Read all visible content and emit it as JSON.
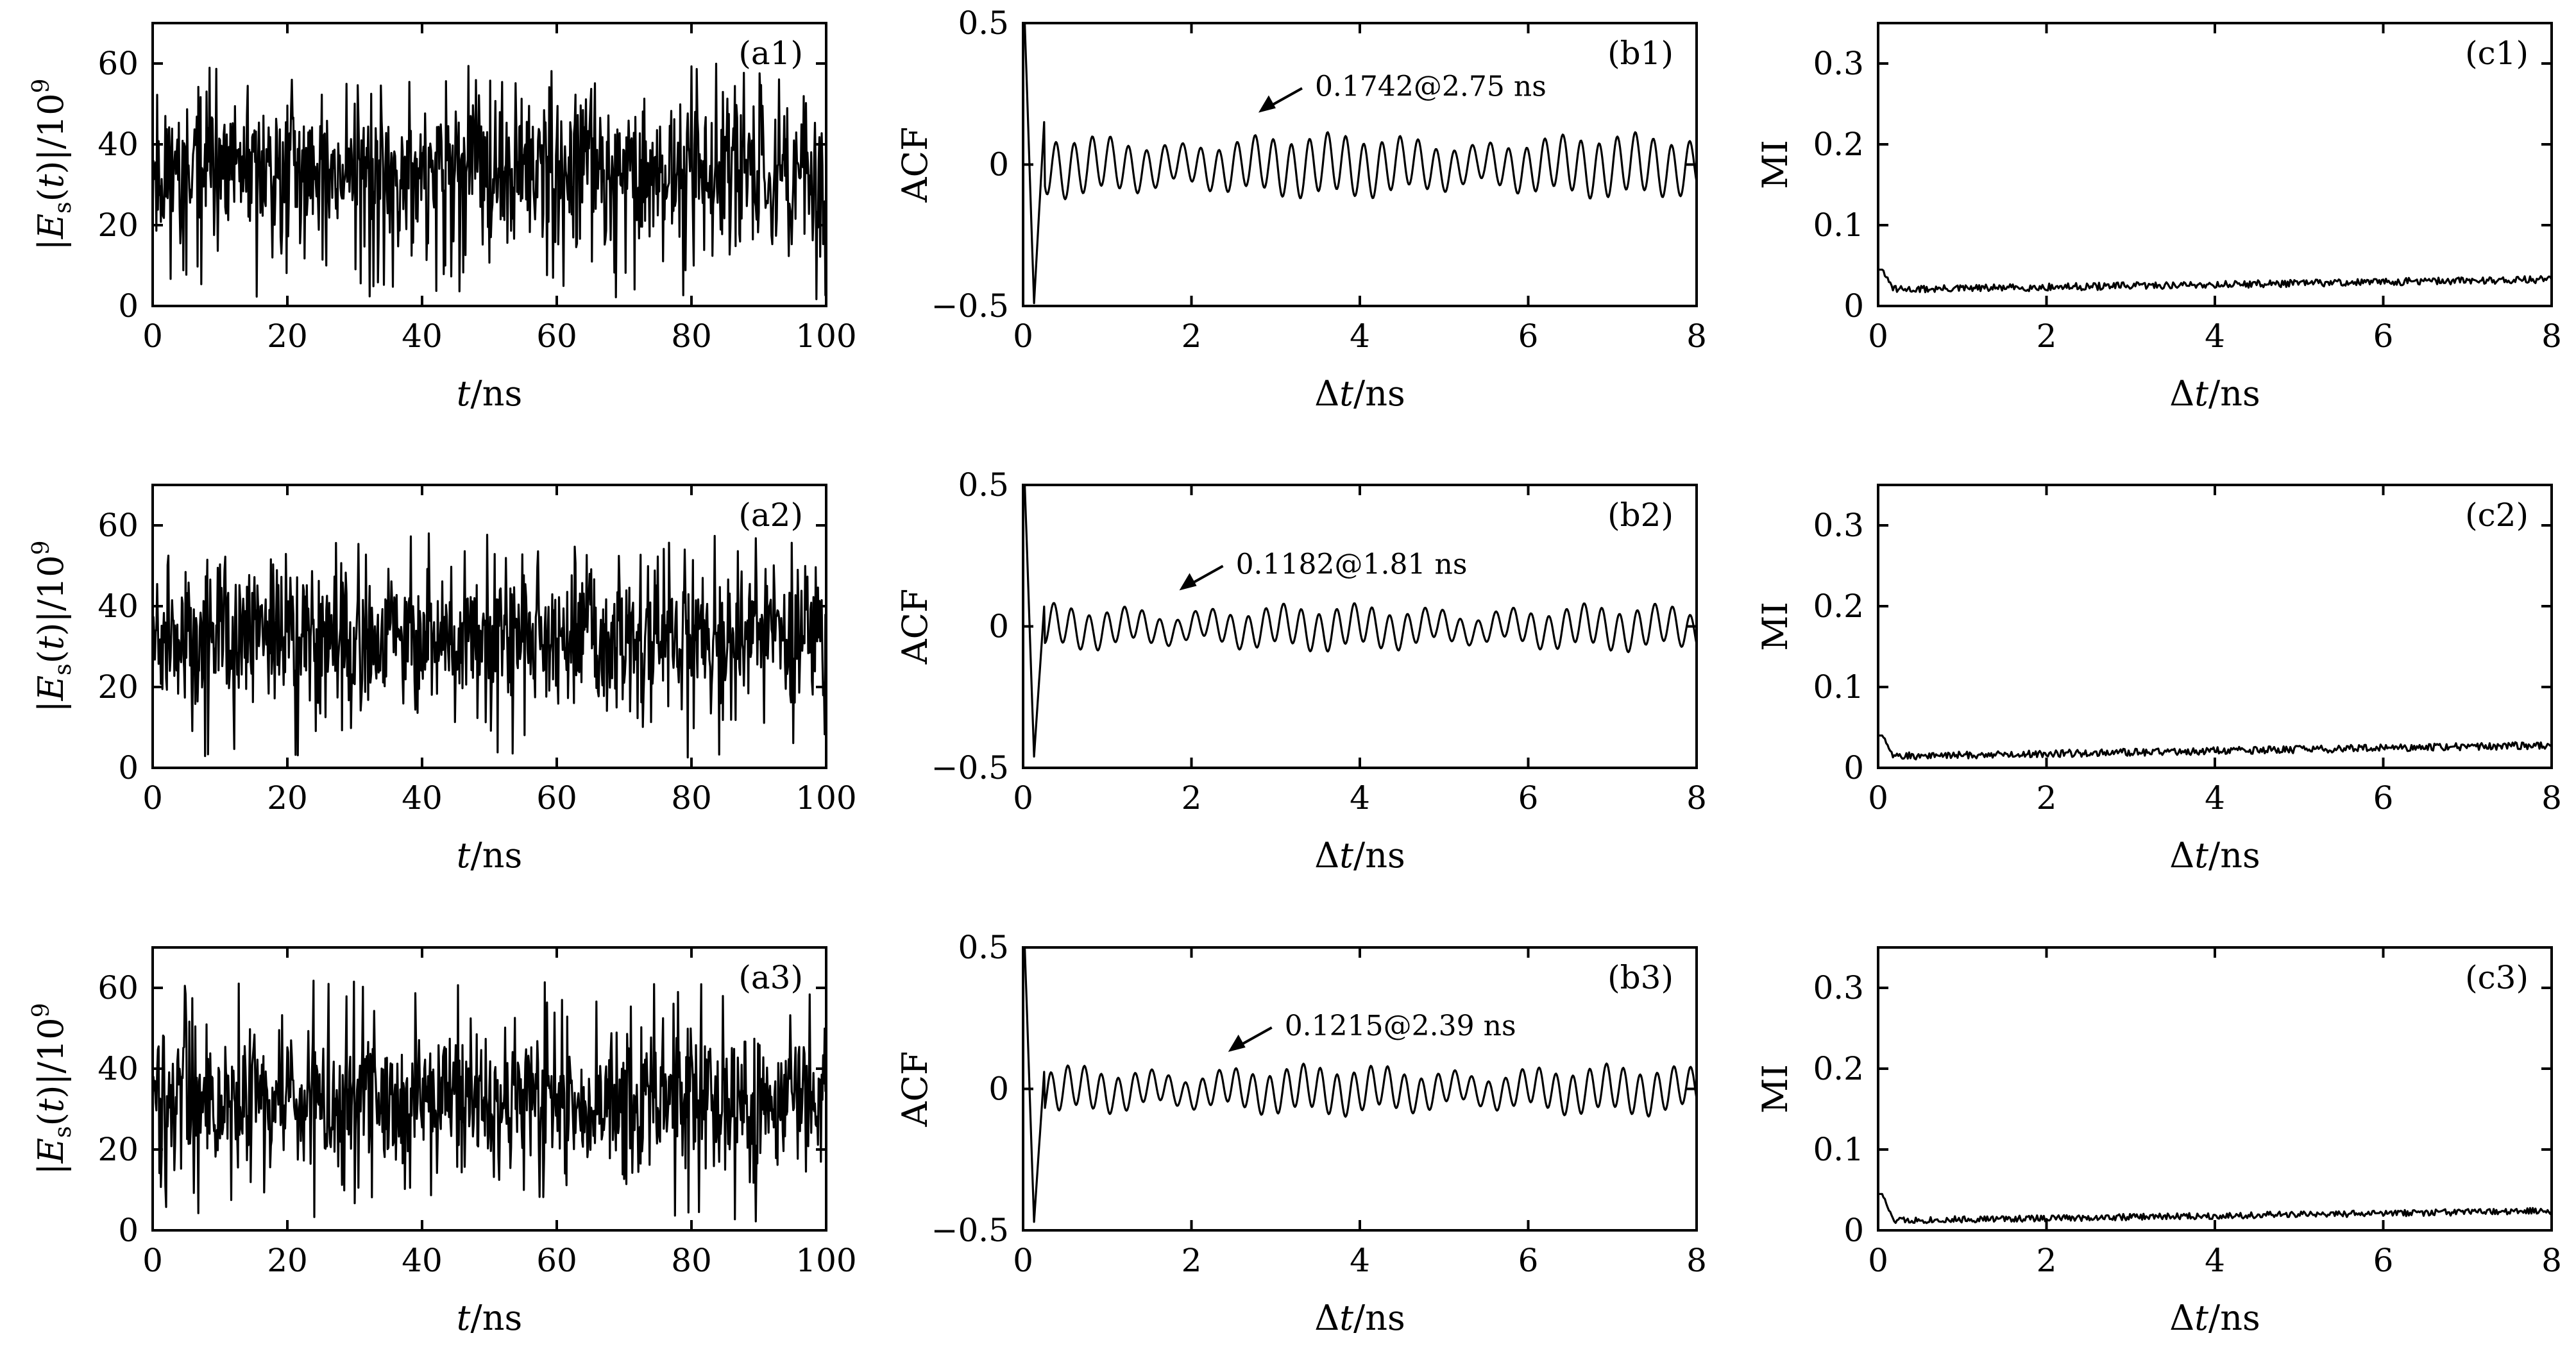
{
  "figure": {
    "columns": 3,
    "rows": 3
  },
  "chart_data": [
    {
      "id": "a1",
      "type": "line",
      "panel_label": "(a1)",
      "xlabel": "t/ns",
      "ylabel": "|Es(t)|/10^9",
      "xlim": [
        0,
        100
      ],
      "ylim": [
        0,
        70
      ],
      "xticks": [
        0,
        20,
        40,
        60,
        80,
        100
      ],
      "yticks": [
        0,
        20,
        40,
        60
      ],
      "signal": {
        "kind": "noise",
        "mean": 33,
        "spread": 12,
        "min": 1,
        "max": 60,
        "points": 900,
        "seed": 11
      }
    },
    {
      "id": "b1",
      "type": "line",
      "panel_label": "(b1)",
      "xlabel": "Δt/ns",
      "ylabel": "ACF",
      "xlim": [
        0,
        8
      ],
      "ylim": [
        -0.5,
        0.5
      ],
      "xticks": [
        0,
        2,
        4,
        6,
        8
      ],
      "yticks": [
        -0.5,
        0,
        0.5
      ],
      "signal": {
        "kind": "acf",
        "dip_x": 0.13,
        "dip_y": -0.49,
        "first_peak": 0.15,
        "amp": 0.08,
        "period": 0.215,
        "points": 800,
        "seed": 21
      },
      "annotation": {
        "text": "0.1742@2.75 ns",
        "x": 2.75,
        "y": 0.1742
      }
    },
    {
      "id": "c1",
      "type": "line",
      "panel_label": "(c1)",
      "xlabel": "Δt/ns",
      "ylabel": "MI",
      "xlim": [
        0,
        8
      ],
      "ylim": [
        0,
        0.35
      ],
      "xticks": [
        0,
        2,
        4,
        6,
        8
      ],
      "yticks": [
        0,
        0.1,
        0.2,
        0.3
      ],
      "signal": {
        "kind": "mi",
        "spike": 0.045,
        "start": 0.02,
        "end": 0.033,
        "noise": 0.0045,
        "points": 500,
        "seed": 31
      }
    },
    {
      "id": "a2",
      "type": "line",
      "panel_label": "(a2)",
      "xlabel": "t/ns",
      "ylabel": "|Es(t)|/10^9",
      "xlim": [
        0,
        100
      ],
      "ylim": [
        0,
        70
      ],
      "xticks": [
        0,
        20,
        40,
        60,
        80,
        100
      ],
      "yticks": [
        0,
        20,
        40,
        60
      ],
      "signal": {
        "kind": "noise",
        "mean": 33,
        "spread": 11,
        "min": 2,
        "max": 58,
        "points": 900,
        "seed": 12
      }
    },
    {
      "id": "b2",
      "type": "line",
      "panel_label": "(b2)",
      "xlabel": "Δt/ns",
      "ylabel": "ACF",
      "xlim": [
        0,
        8
      ],
      "ylim": [
        -0.5,
        0.5
      ],
      "xticks": [
        0,
        2,
        4,
        6,
        8
      ],
      "yticks": [
        -0.5,
        0,
        0.5
      ],
      "signal": {
        "kind": "acf",
        "dip_x": 0.13,
        "dip_y": -0.46,
        "first_peak": 0.07,
        "amp": 0.055,
        "period": 0.21,
        "points": 800,
        "seed": 22
      },
      "annotation": {
        "text": "0.1182@1.81 ns",
        "x": 1.81,
        "y": 0.1182
      }
    },
    {
      "id": "c2",
      "type": "line",
      "panel_label": "(c2)",
      "xlabel": "Δt/ns",
      "ylabel": "MI",
      "xlim": [
        0,
        8
      ],
      "ylim": [
        0,
        0.35
      ],
      "xticks": [
        0,
        2,
        4,
        6,
        8
      ],
      "yticks": [
        0,
        0.1,
        0.2,
        0.3
      ],
      "signal": {
        "kind": "mi",
        "spike": 0.04,
        "start": 0.014,
        "end": 0.028,
        "noise": 0.0045,
        "points": 500,
        "seed": 32
      }
    },
    {
      "id": "a3",
      "type": "line",
      "panel_label": "(a3)",
      "xlabel": "t/ns",
      "ylabel": "|Es(t)|/10^9",
      "xlim": [
        0,
        100
      ],
      "ylim": [
        0,
        70
      ],
      "xticks": [
        0,
        20,
        40,
        60,
        80,
        100
      ],
      "yticks": [
        0,
        20,
        40,
        60
      ],
      "signal": {
        "kind": "noise",
        "mean": 32,
        "spread": 11,
        "min": 2,
        "max": 62,
        "points": 900,
        "seed": 13
      }
    },
    {
      "id": "b3",
      "type": "line",
      "panel_label": "(b3)",
      "xlabel": "Δt/ns",
      "ylabel": "ACF",
      "xlim": [
        0,
        8
      ],
      "ylim": [
        -0.5,
        0.5
      ],
      "xticks": [
        0,
        2,
        4,
        6,
        8
      ],
      "yticks": [
        -0.5,
        0,
        0.5
      ],
      "signal": {
        "kind": "acf",
        "dip_x": 0.13,
        "dip_y": -0.47,
        "first_peak": 0.06,
        "amp": 0.06,
        "period": 0.2,
        "points": 800,
        "seed": 23
      },
      "annotation": {
        "text": "0.1215@2.39 ns",
        "x": 2.39,
        "y": 0.1215
      }
    },
    {
      "id": "c3",
      "type": "line",
      "panel_label": "(c3)",
      "xlabel": "Δt/ns",
      "ylabel": "MI",
      "xlim": [
        0,
        8
      ],
      "ylim": [
        0,
        0.35
      ],
      "xticks": [
        0,
        2,
        4,
        6,
        8
      ],
      "yticks": [
        0,
        0.1,
        0.2,
        0.3
      ],
      "signal": {
        "kind": "mi",
        "spike": 0.045,
        "start": 0.012,
        "end": 0.024,
        "noise": 0.004,
        "points": 500,
        "seed": 33
      }
    }
  ]
}
